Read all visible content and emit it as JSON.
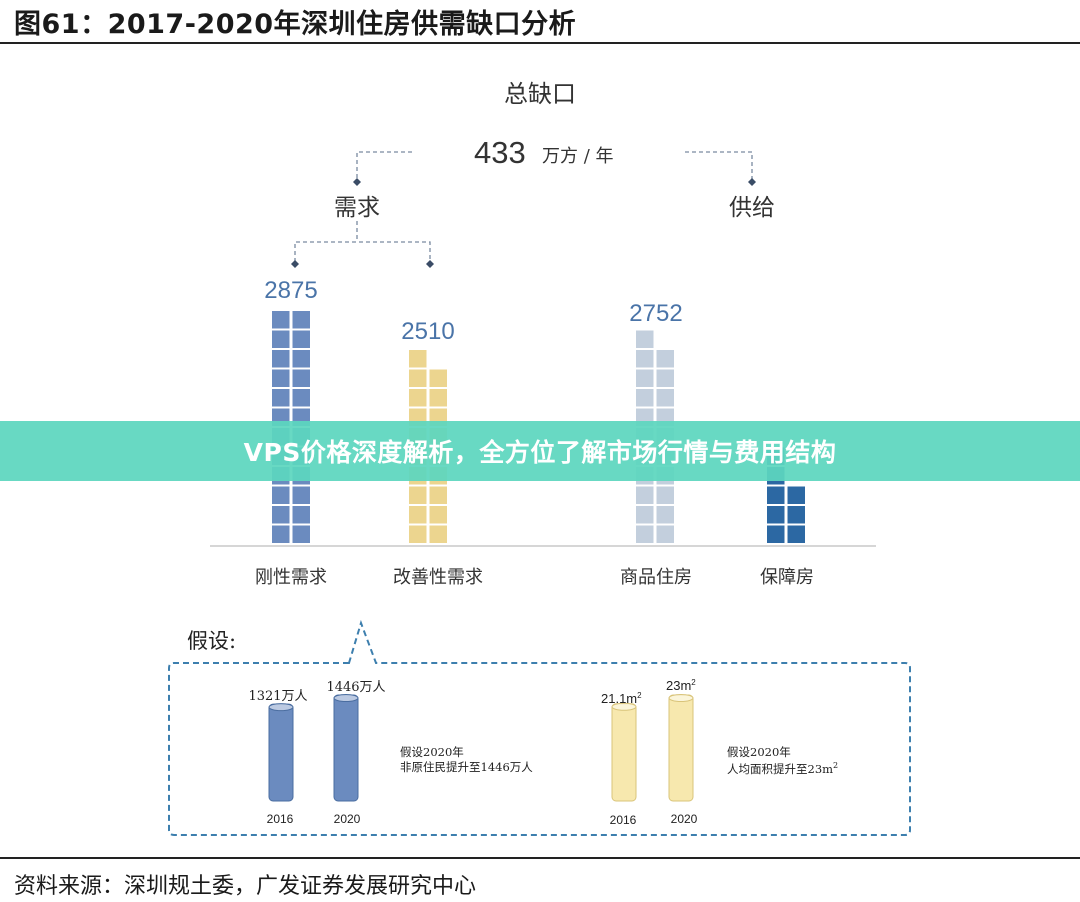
{
  "figure": {
    "title": "图61：2017-2020年深圳住房供需缺口分析",
    "source": "资料来源：深圳规土委，广发证券发展研究中心"
  },
  "banner": {
    "text": "VPS价格深度解析，全方位了解市场行情与费用结构"
  },
  "colors": {
    "rigid_demand": "#6b8bbf",
    "improve_demand": "#ecd58f",
    "commercial_housing": "#c3cfdd",
    "affordable_housing": "#2c68a3",
    "banner": "#5cd6be",
    "dash_line": "#7a8aa0",
    "assumption_border": "#3d7fae"
  },
  "tree": {
    "total_label": "总缺口",
    "total_value": "433",
    "total_unit": "万方 / 年",
    "demand_label": "需求",
    "supply_label": "供给",
    "demand_value_left": "2875",
    "demand_value_right": "2510",
    "supply_value": "2752"
  },
  "chart_data": {
    "type": "bar",
    "categories": [
      "刚性需求",
      "改善性需求",
      "商品住房",
      "保障房"
    ],
    "values": [
      2875,
      2510,
      2752,
      null
    ],
    "labels": [
      "2875",
      "2510",
      "2752",
      ""
    ],
    "groups": [
      {
        "name": "需求",
        "categories": [
          "刚性需求",
          "改善性需求"
        ]
      },
      {
        "name": "供给",
        "categories": [
          "商品住房",
          "保障房"
        ]
      }
    ],
    "total_gap": 433,
    "total_gap_unit": "万方 / 年",
    "blocks": [
      {
        "category": "刚性需求",
        "columns": [
          12,
          12
        ],
        "color": "#6b8bbf"
      },
      {
        "category": "改善性需求",
        "columns": [
          10,
          9
        ],
        "color": "#ecd58f"
      },
      {
        "category": "商品住房",
        "columns": [
          11,
          10
        ],
        "color": "#c3cfdd"
      },
      {
        "category": "保障房",
        "columns": [
          5,
          3
        ],
        "color": "#2c68a3"
      }
    ]
  },
  "assumptions": {
    "label": "假设:",
    "population": {
      "bars": [
        {
          "year": "2016",
          "value_label": "1321万人",
          "value": 1321
        },
        {
          "year": "2020",
          "value_label": "1446万人",
          "value": 1446
        }
      ],
      "note_line1": "假设2020年",
      "note_line2": "非原住民提升至1446万人",
      "color": "#6b8bbf"
    },
    "per_capita_area": {
      "bars": [
        {
          "year": "2016",
          "value_text": "21.1m",
          "value_sup": "2",
          "value": 21.1
        },
        {
          "year": "2020",
          "value_text": "23m",
          "value_sup": "2",
          "value": 23
        }
      ],
      "note_line1": "假设2020年",
      "note_line2": "人均面积提升至23m",
      "note_sup": "2",
      "color": "#f7e8ae"
    }
  }
}
